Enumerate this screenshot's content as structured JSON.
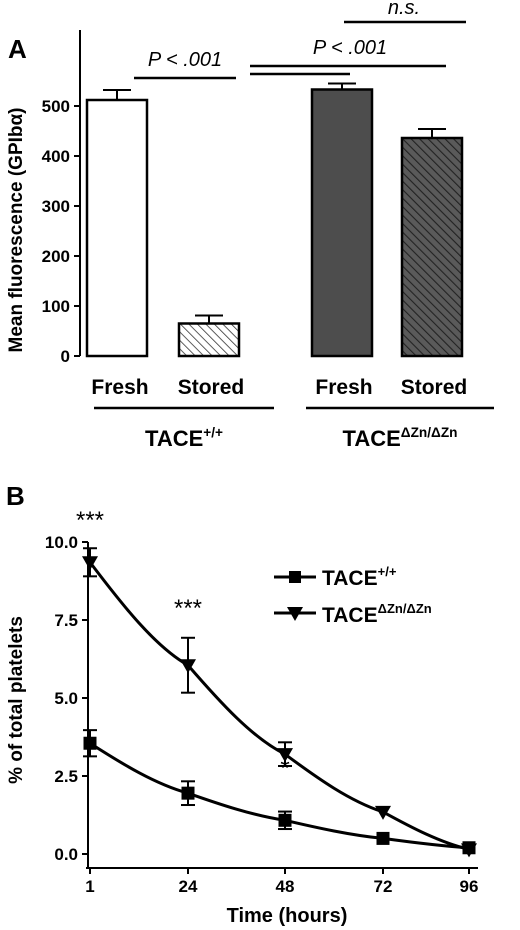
{
  "chart_data": [
    {
      "panel": "A",
      "type": "bar",
      "ylabel": "Mean fluorescence (GPIbα)",
      "ylim": [
        0,
        600
      ],
      "yticks": [
        0,
        100,
        200,
        300,
        400,
        500
      ],
      "categories": [
        "Fresh",
        "Stored",
        "Fresh",
        "Stored"
      ],
      "groups": [
        {
          "label_base": "TACE",
          "label_sup": "+/+"
        },
        {
          "label_base": "TACE",
          "label_sup": "ΔZn/ΔZn"
        }
      ],
      "values": [
        512,
        65,
        533,
        436
      ],
      "errors": [
        20,
        16,
        12,
        18
      ],
      "bar_colors": [
        "#ffffff",
        "hatch-light",
        "#4d4d4d",
        "hatch-dark"
      ],
      "annotations": [
        "P < .001",
        "P < .001",
        "n.s."
      ]
    },
    {
      "panel": "B",
      "type": "line",
      "xlabel": "Time (hours)",
      "ylabel": "% of total platelets",
      "x": [
        1,
        24,
        48,
        72,
        96
      ],
      "xticks": [
        "1",
        "24",
        "48",
        "72",
        "96"
      ],
      "ylim": [
        0,
        10
      ],
      "yticks": [
        "0.0",
        "2.5",
        "5.0",
        "7.5",
        "10.0"
      ],
      "series": [
        {
          "name_base": "TACE",
          "name_sup": "+/+",
          "marker": "square",
          "values": [
            3.55,
            1.95,
            1.08,
            0.5,
            0.2
          ],
          "errors": [
            0.42,
            0.38,
            0.28,
            0.0,
            0.0
          ]
        },
        {
          "name_base": "TACE",
          "name_sup": "ΔZn/ΔZn",
          "marker": "triangle-down",
          "values": [
            9.35,
            6.05,
            3.2,
            1.35,
            0.15
          ],
          "errors": [
            0.45,
            0.88,
            0.38,
            0.0,
            0.0
          ]
        }
      ],
      "significance": [
        "***",
        "***",
        "*"
      ],
      "legend_position": "top-right"
    }
  ]
}
